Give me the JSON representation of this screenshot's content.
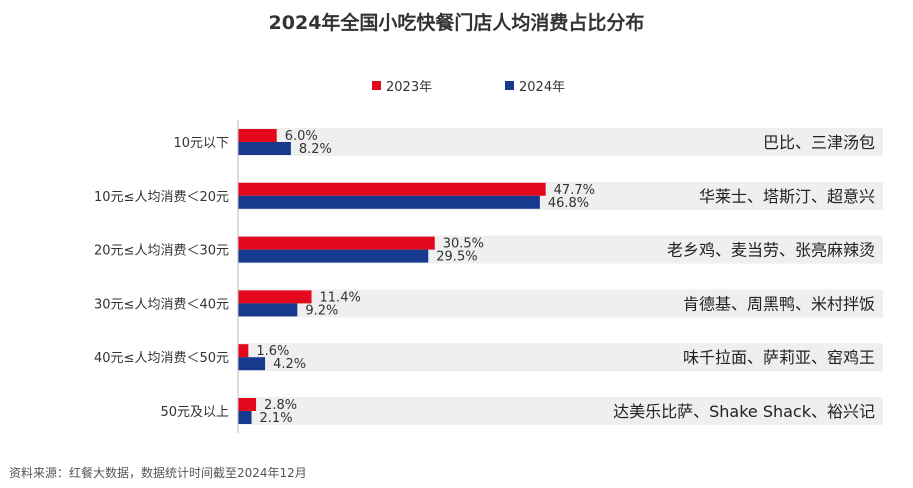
{
  "title": "2024年全国小吃快餐门店人均消费占比分布",
  "source": "资料来源：红餐大数据，数据统计时间截至2024年12月",
  "colors": {
    "series_2023": "#e3081b",
    "series_2024": "#173a8f",
    "row_bg": "#efefef",
    "axis": "#bbbbbb"
  },
  "chart_data": {
    "type": "bar",
    "orientation": "horizontal",
    "categories": [
      "10元以下",
      "10元≤人均消费＜20元",
      "20元≤人均消费＜30元",
      "30元≤人均消费＜40元",
      "40元≤人均消费＜50元",
      "50元及以上"
    ],
    "series": [
      {
        "name": "2023年",
        "values": [
          6.0,
          47.7,
          30.5,
          11.4,
          1.6,
          2.8
        ],
        "labels": [
          "6.0%",
          "47.7%",
          "30.5%",
          "11.4%",
          "1.6%",
          "2.8%"
        ]
      },
      {
        "name": "2024年",
        "values": [
          8.2,
          46.8,
          29.5,
          9.2,
          4.2,
          2.1
        ],
        "labels": [
          "8.2%",
          "46.8%",
          "29.5%",
          "9.2%",
          "4.2%",
          "2.1%"
        ]
      }
    ],
    "annotations": [
      "巴比、三津汤包",
      "华莱士、塔斯汀、超意兴",
      "老乡鸡、麦当劳、张亮麻辣烫",
      "肯德基、周黑鸭、米村拌饭",
      "味千拉面、萨莉亚、窑鸡王",
      "达美乐比萨、Shake Shack、裕兴记"
    ],
    "legend_position": "top",
    "grid": false
  }
}
